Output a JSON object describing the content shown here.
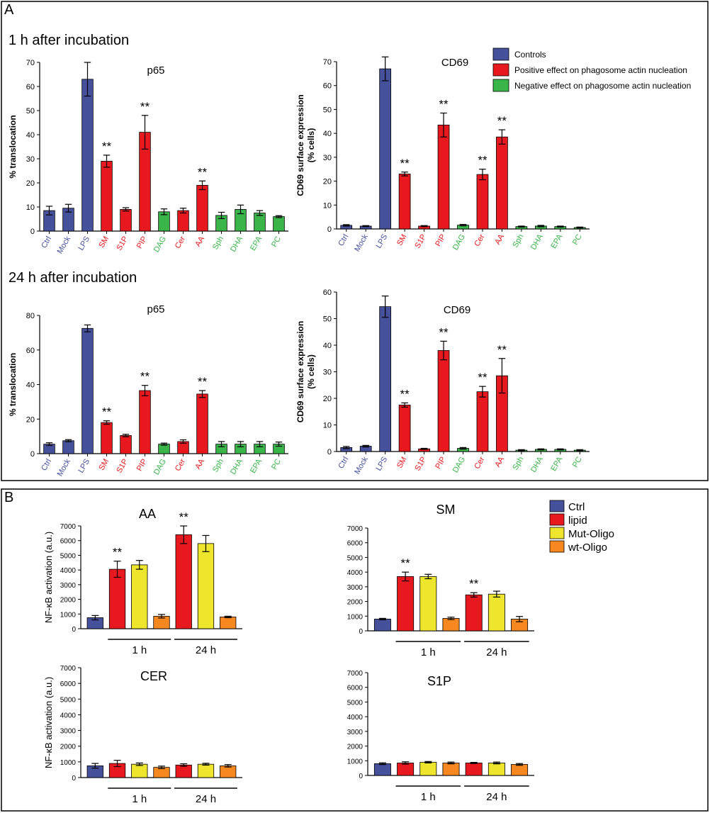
{
  "panels": {
    "A": {
      "letter": "A",
      "sections": [
        {
          "title": "1 h after incubation"
        },
        {
          "title": "24 h after incubation"
        }
      ],
      "legend": [
        {
          "label": "Controls",
          "color": "#46519c"
        },
        {
          "label": "Positive effect on phagosome actin nucleation",
          "color": "#e8191e"
        },
        {
          "label": "Negative effect on phagosome actin nucleation",
          "color": "#39b54a"
        }
      ]
    },
    "B": {
      "letter": "B",
      "legend": [
        {
          "label": "Ctrl",
          "color": "#46519c"
        },
        {
          "label": "lipid",
          "color": "#e8191e"
        },
        {
          "label": "Mut-Oligo",
          "color": "#ede62c"
        },
        {
          "label": "wt-Oligo",
          "color": "#f7881f"
        }
      ]
    }
  },
  "colors": {
    "blue": "#46519c",
    "red": "#e8191e",
    "green": "#39b54a",
    "yellow": "#ede62c",
    "orange": "#f7881f"
  },
  "chart_data": [
    {
      "type": "bar",
      "panel": "A",
      "section": "1 h after incubation",
      "title": "p65",
      "ylabel": "% translocation",
      "ylim": [
        0,
        70
      ],
      "yticks": [
        0,
        10,
        20,
        30,
        40,
        50,
        60,
        70
      ],
      "categories": [
        "Ctrl",
        "Mock",
        "LPS",
        "SM",
        "S1P",
        "PIP",
        "DAG",
        "Cer",
        "AA",
        "Sph",
        "DHA",
        "EPA",
        "PC"
      ],
      "category_colors": [
        "blue",
        "blue",
        "blue",
        "red",
        "red",
        "red",
        "green",
        "red",
        "red",
        "green",
        "green",
        "green",
        "green"
      ],
      "values": [
        8.5,
        9.5,
        63,
        29,
        9,
        41,
        8,
        8.5,
        19,
        6.5,
        9,
        7.5,
        6
      ],
      "errors": [
        1.8,
        1.6,
        7,
        2.5,
        0.7,
        7,
        1.2,
        1,
        1.8,
        1.3,
        1.8,
        1,
        0.4
      ],
      "significance": [
        "",
        "",
        "",
        "**",
        "",
        "**",
        "",
        "",
        "**",
        "",
        "",
        "",
        ""
      ]
    },
    {
      "type": "bar",
      "panel": "A",
      "section": "1 h after incubation",
      "title": "CD69",
      "ylabel": [
        "CD69 surface expression",
        "(% cells)"
      ],
      "ylim": [
        0,
        70
      ],
      "yticks": [
        0,
        10,
        20,
        30,
        40,
        50,
        60,
        70
      ],
      "categories": [
        "Ctrl",
        "Mock",
        "LPS",
        "SM",
        "S1P",
        "PIP",
        "DAG",
        "Cer",
        "AA",
        "Sph",
        "DHA",
        "EPA",
        "PC"
      ],
      "category_colors": [
        "blue",
        "blue",
        "blue",
        "red",
        "red",
        "red",
        "green",
        "red",
        "red",
        "green",
        "green",
        "green",
        "green"
      ],
      "values": [
        1.5,
        1.2,
        67,
        23,
        1.2,
        43.5,
        1.6,
        22.8,
        38.5,
        1,
        1.2,
        1,
        0.6
      ],
      "errors": [
        0.3,
        0.2,
        5,
        0.8,
        0.2,
        5,
        0.3,
        2.2,
        3,
        0.2,
        0.3,
        0.2,
        0.2
      ],
      "significance": [
        "",
        "",
        "",
        "**",
        "",
        "**",
        "",
        "**",
        "**",
        "",
        "",
        "",
        ""
      ]
    },
    {
      "type": "bar",
      "panel": "A",
      "section": "24 h after incubation",
      "title": "p65",
      "ylabel": "% translocation",
      "ylim": [
        0,
        80
      ],
      "yticks": [
        0,
        20,
        40,
        60,
        80
      ],
      "categories": [
        "Ctrl",
        "Mock",
        "LPS",
        "SM",
        "S1P",
        "PIP",
        "DAG",
        "Cer",
        "AA",
        "Sph",
        "DHA",
        "EPA",
        "PC"
      ],
      "category_colors": [
        "blue",
        "blue",
        "blue",
        "red",
        "red",
        "red",
        "green",
        "red",
        "red",
        "green",
        "green",
        "green",
        "green"
      ],
      "values": [
        5.5,
        7.5,
        72.5,
        18,
        10.5,
        36.5,
        5.5,
        7,
        34.5,
        5.5,
        5.5,
        5.5,
        5.5
      ],
      "errors": [
        0.8,
        0.6,
        2,
        1,
        0.7,
        3,
        0.6,
        1,
        2,
        1.5,
        1.5,
        1.5,
        1.2
      ],
      "significance": [
        "",
        "",
        "",
        "**",
        "",
        "**",
        "",
        "",
        "**",
        "",
        "",
        "",
        ""
      ]
    },
    {
      "type": "bar",
      "panel": "A",
      "section": "24 h after incubation",
      "title": "CD69",
      "ylabel": [
        "CD69 surface expression",
        "(% cells)"
      ],
      "ylim": [
        0,
        60
      ],
      "yticks": [
        0,
        10,
        20,
        30,
        40,
        50,
        60
      ],
      "categories": [
        "Ctrl",
        "Mock",
        "LPS",
        "SM",
        "S1P",
        "PIP",
        "DAG",
        "Cer",
        "AA",
        "Sph",
        "DHA",
        "EPA",
        "PC"
      ],
      "category_colors": [
        "blue",
        "blue",
        "blue",
        "red",
        "red",
        "red",
        "green",
        "red",
        "red",
        "green",
        "green",
        "green",
        "green"
      ],
      "values": [
        1.5,
        2,
        54.5,
        17.5,
        1,
        38,
        1.2,
        22.5,
        28.5,
        0.5,
        0.8,
        0.8,
        0.5
      ],
      "errors": [
        0.4,
        0.3,
        4,
        0.8,
        0.2,
        3.5,
        0.3,
        2,
        6.5,
        0.2,
        0.2,
        0.2,
        0.2
      ],
      "significance": [
        "",
        "",
        "",
        "**",
        "",
        "**",
        "",
        "**",
        "**",
        "",
        "",
        "",
        ""
      ]
    },
    {
      "type": "bar",
      "panel": "B",
      "title": "AA",
      "ylabel": "NF-κB activation (a.u.)",
      "ylim": [
        0,
        7000
      ],
      "yticks": [
        0,
        1000,
        2000,
        3000,
        4000,
        5000,
        6000,
        7000
      ],
      "bar_colors": [
        "blue",
        "red",
        "yellow",
        "orange",
        "red",
        "yellow",
        "orange"
      ],
      "values": [
        750,
        4050,
        4350,
        850,
        6400,
        5800,
        800
      ],
      "errors": [
        150,
        550,
        300,
        120,
        600,
        550,
        50
      ],
      "significance": [
        "",
        "**",
        "",
        "",
        "**",
        "",
        ""
      ],
      "groups": [
        {
          "label": "1 h",
          "from": 1,
          "to": 3
        },
        {
          "label": "24 h",
          "from": 4,
          "to": 6
        }
      ]
    },
    {
      "type": "bar",
      "panel": "B",
      "title": "SM",
      "ylabel": "",
      "ylim": [
        0,
        7000
      ],
      "yticks": [
        0,
        1000,
        2000,
        3000,
        4000,
        5000,
        6000,
        7000
      ],
      "bar_colors": [
        "blue",
        "red",
        "yellow",
        "orange",
        "red",
        "yellow",
        "orange"
      ],
      "values": [
        800,
        3700,
        3700,
        850,
        2450,
        2500,
        800
      ],
      "errors": [
        50,
        300,
        150,
        80,
        150,
        200,
        180
      ],
      "significance": [
        "",
        "**",
        "",
        "",
        "**",
        "",
        ""
      ],
      "groups": [
        {
          "label": "1 h",
          "from": 1,
          "to": 3
        },
        {
          "label": "24 h",
          "from": 4,
          "to": 6
        }
      ]
    },
    {
      "type": "bar",
      "panel": "B",
      "title": "CER",
      "ylabel": "NF-κB activation (a.u.)",
      "ylim": [
        0,
        7000
      ],
      "yticks": [
        0,
        1000,
        2000,
        3000,
        4000,
        5000,
        6000,
        7000
      ],
      "bar_colors": [
        "blue",
        "red",
        "yellow",
        "orange",
        "red",
        "yellow",
        "orange"
      ],
      "values": [
        750,
        900,
        850,
        650,
        800,
        850,
        750
      ],
      "errors": [
        150,
        200,
        80,
        80,
        80,
        60,
        80
      ],
      "significance": [
        "",
        "",
        "",
        "",
        "",
        "",
        ""
      ],
      "groups": [
        {
          "label": "1 h",
          "from": 1,
          "to": 3
        },
        {
          "label": "24 h",
          "from": 4,
          "to": 6
        }
      ]
    },
    {
      "type": "bar",
      "panel": "B",
      "title": "S1P",
      "ylabel": "",
      "ylim": [
        0,
        7000
      ],
      "yticks": [
        0,
        1000,
        2000,
        3000,
        4000,
        5000,
        6000,
        7000
      ],
      "bar_colors": [
        "blue",
        "red",
        "yellow",
        "orange",
        "red",
        "yellow",
        "orange"
      ],
      "values": [
        800,
        850,
        900,
        850,
        850,
        850,
        750
      ],
      "errors": [
        60,
        80,
        50,
        60,
        40,
        60,
        60
      ],
      "significance": [
        "",
        "",
        "",
        "",
        "",
        "",
        ""
      ],
      "groups": [
        {
          "label": "1 h",
          "from": 1,
          "to": 3
        },
        {
          "label": "24 h",
          "from": 4,
          "to": 6
        }
      ]
    }
  ]
}
